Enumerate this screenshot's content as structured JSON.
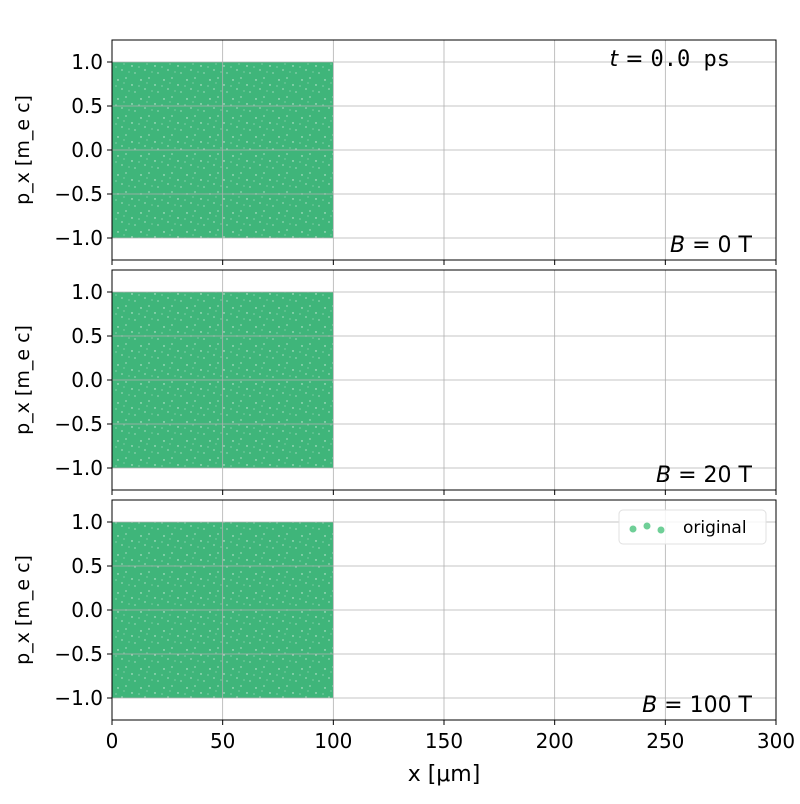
{
  "chart_data": {
    "type": "scatter",
    "annotation_time": "t = 0.0 ps",
    "time_prefix": "t",
    "time_value": "0.0 ps",
    "xlabel": "x [μm]",
    "ylabel": "p_x [m_e c]",
    "xlim": [
      0,
      300
    ],
    "ylim": [
      -1.25,
      1.25
    ],
    "xticks": [
      0,
      50,
      100,
      150,
      200,
      250,
      300
    ],
    "yticks": [
      -1.0,
      -0.5,
      0.0,
      0.5,
      1.0
    ],
    "grid": true,
    "legend": {
      "placement": "top-right of bottom panel",
      "entries": [
        "original"
      ]
    },
    "series_color": "#3fb57a",
    "panels": [
      {
        "label": "B = 0 T",
        "B_value": "0 T",
        "series": [
          {
            "name": "original",
            "x_range": [
              0,
              100
            ],
            "y_range": [
              -1.0,
              1.0
            ],
            "distribution": "uniform"
          }
        ]
      },
      {
        "label": "B = 20 T",
        "B_value": "20 T",
        "series": [
          {
            "name": "original",
            "x_range": [
              0,
              100
            ],
            "y_range": [
              -1.0,
              1.0
            ],
            "distribution": "uniform"
          }
        ]
      },
      {
        "label": "B = 100 T",
        "B_value": "100 T",
        "series": [
          {
            "name": "original",
            "x_range": [
              0,
              100
            ],
            "y_range": [
              -1.0,
              1.0
            ],
            "distribution": "uniform"
          }
        ]
      }
    ]
  }
}
